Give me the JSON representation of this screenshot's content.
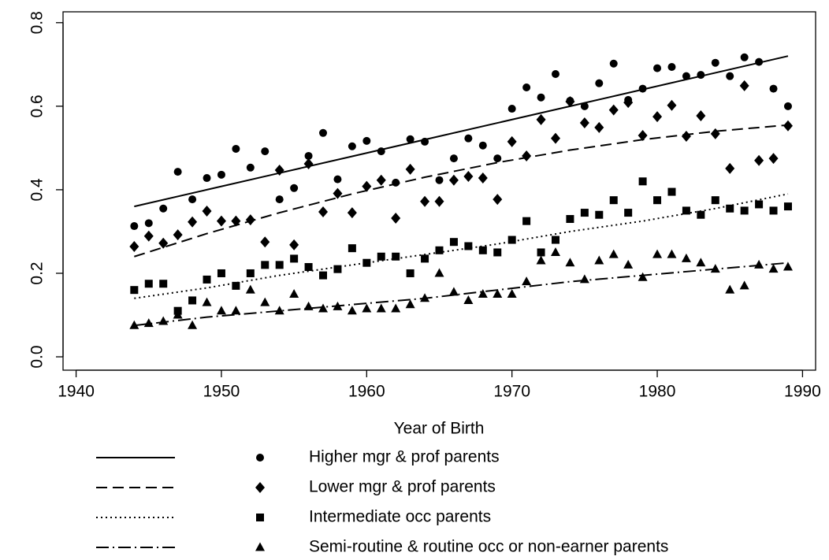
{
  "chart_data": {
    "type": "scatter",
    "x_label": "Year of Birth",
    "x": [
      1944,
      1945,
      1946,
      1947,
      1948,
      1949,
      1950,
      1951,
      1952,
      1953,
      1954,
      1955,
      1956,
      1957,
      1958,
      1959,
      1960,
      1961,
      1962,
      1963,
      1964,
      1965,
      1966,
      1967,
      1968,
      1969,
      1970,
      1971,
      1972,
      1973,
      1974,
      1975,
      1976,
      1977,
      1978,
      1979,
      1980,
      1981,
      1982,
      1983,
      1984,
      1985,
      1986,
      1987,
      1988,
      1989
    ],
    "fit_x": [
      1944,
      1949,
      1954,
      1959,
      1964,
      1969,
      1974,
      1979,
      1984,
      1989
    ],
    "xlim": [
      1939.1,
      1990.9
    ],
    "xticks": [
      1940,
      1950,
      1960,
      1970,
      1980,
      1990
    ],
    "ylim": [
      -0.032,
      0.826
    ],
    "yticks": [
      {
        "value": 0,
        "label": "0.0"
      },
      0.2,
      0.4,
      0.6,
      0.8
    ],
    "series": [
      {
        "name": "Higher mgr & prof parents",
        "color": "#000000",
        "marker": "circle",
        "line_style": "solid",
        "values": [
          0.313,
          0.32,
          0.355,
          0.443,
          0.377,
          0.428,
          0.436,
          0.498,
          0.453,
          0.492,
          0.377,
          0.404,
          0.481,
          0.536,
          0.425,
          0.504,
          0.517,
          0.492,
          0.417,
          0.521,
          0.515,
          0.423,
          0.475,
          0.523,
          0.506,
          0.475,
          0.594,
          0.645,
          0.621,
          0.677,
          0.613,
          0.6,
          0.655,
          0.702,
          0.615,
          0.642,
          0.691,
          0.694,
          0.672,
          0.675,
          0.704,
          0.672,
          0.717,
          0.706,
          0.642,
          0.6
        ],
        "fit": [
          0.36,
          0.4,
          0.44,
          0.48,
          0.52,
          0.56,
          0.6,
          0.64,
          0.68,
          0.72
        ]
      },
      {
        "name": "Lower mgr & prof parents",
        "color": "#000000",
        "marker": "diamond",
        "line_style": "dashed",
        "values": [
          0.264,
          0.289,
          0.272,
          0.292,
          0.323,
          0.349,
          0.325,
          0.325,
          0.328,
          0.275,
          0.447,
          0.268,
          0.462,
          0.347,
          0.391,
          0.345,
          0.408,
          0.423,
          0.332,
          0.449,
          0.372,
          0.372,
          0.423,
          0.432,
          0.428,
          0.377,
          0.515,
          0.481,
          0.568,
          0.523,
          0.611,
          0.56,
          0.549,
          0.591,
          0.609,
          0.53,
          0.575,
          0.602,
          0.528,
          0.577,
          0.534,
          0.451,
          0.649,
          0.47,
          0.475,
          0.553
        ],
        "fit": [
          0.24,
          0.295,
          0.345,
          0.39,
          0.43,
          0.465,
          0.495,
          0.52,
          0.54,
          0.555
        ]
      },
      {
        "name": "Intermediate occ parents",
        "color": "#000000",
        "marker": "square",
        "line_style": "dotted",
        "values": [
          0.16,
          0.175,
          0.175,
          0.11,
          0.135,
          0.185,
          0.2,
          0.17,
          0.2,
          0.22,
          0.22,
          0.235,
          0.215,
          0.195,
          0.21,
          0.26,
          0.225,
          0.24,
          0.24,
          0.2,
          0.235,
          0.255,
          0.275,
          0.265,
          0.255,
          0.25,
          0.28,
          0.325,
          0.25,
          0.28,
          0.33,
          0.345,
          0.34,
          0.375,
          0.345,
          0.42,
          0.375,
          0.395,
          0.35,
          0.34,
          0.375,
          0.355,
          0.35,
          0.365,
          0.35,
          0.36
        ],
        "fit": [
          0.14,
          0.165,
          0.195,
          0.22,
          0.245,
          0.27,
          0.3,
          0.325,
          0.355,
          0.39
        ]
      },
      {
        "name": "Semi-routine & routine occ or non-earner parents",
        "color": "#000000",
        "marker": "triangle",
        "line_style": "dashdot",
        "values": [
          0.075,
          0.08,
          0.085,
          0.1,
          0.075,
          0.13,
          0.11,
          0.11,
          0.16,
          0.13,
          0.11,
          0.15,
          0.12,
          0.115,
          0.12,
          0.11,
          0.115,
          0.115,
          0.115,
          0.125,
          0.14,
          0.2,
          0.155,
          0.135,
          0.15,
          0.15,
          0.15,
          0.18,
          0.23,
          0.25,
          0.225,
          0.185,
          0.23,
          0.245,
          0.22,
          0.19,
          0.245,
          0.245,
          0.235,
          0.225,
          0.21,
          0.16,
          0.17,
          0.22,
          0.21,
          0.215
        ],
        "fit": [
          0.075,
          0.095,
          0.11,
          0.125,
          0.14,
          0.16,
          0.18,
          0.195,
          0.21,
          0.225
        ]
      }
    ]
  }
}
